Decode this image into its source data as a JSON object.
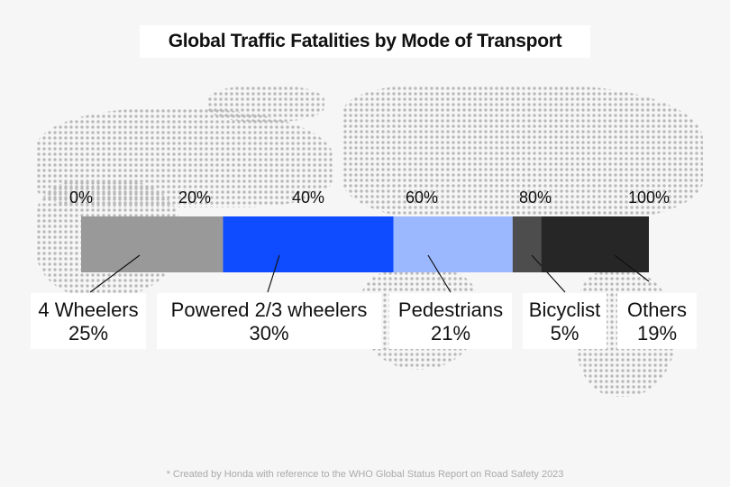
{
  "chart_data": {
    "type": "bar",
    "orientation": "horizontal-stacked-100",
    "title": "Global Traffic Fatalities by Mode of Transport",
    "xlim": [
      0,
      100
    ],
    "ticks": [
      "0%",
      "20%",
      "40%",
      "60%",
      "80%",
      "100%"
    ],
    "series": [
      {
        "name": "4 Wheelers",
        "value": 25,
        "label": "25%",
        "color": "#999999"
      },
      {
        "name": "Powered 2/3 wheelers",
        "value": 30,
        "label": "30%",
        "color": "#0f4cff"
      },
      {
        "name": "Pedestrians",
        "value": 21,
        "label": "21%",
        "color": "#9bb8ff"
      },
      {
        "name": "Bicyclist",
        "value": 5,
        "label": "5%",
        "color": "#4d4d4d"
      },
      {
        "name": "Others",
        "value": 19,
        "label": "19%",
        "color": "#262626"
      }
    ],
    "footnote": "* Created by Honda with reference to the WHO Global Status Report on Road Safety 2023"
  }
}
